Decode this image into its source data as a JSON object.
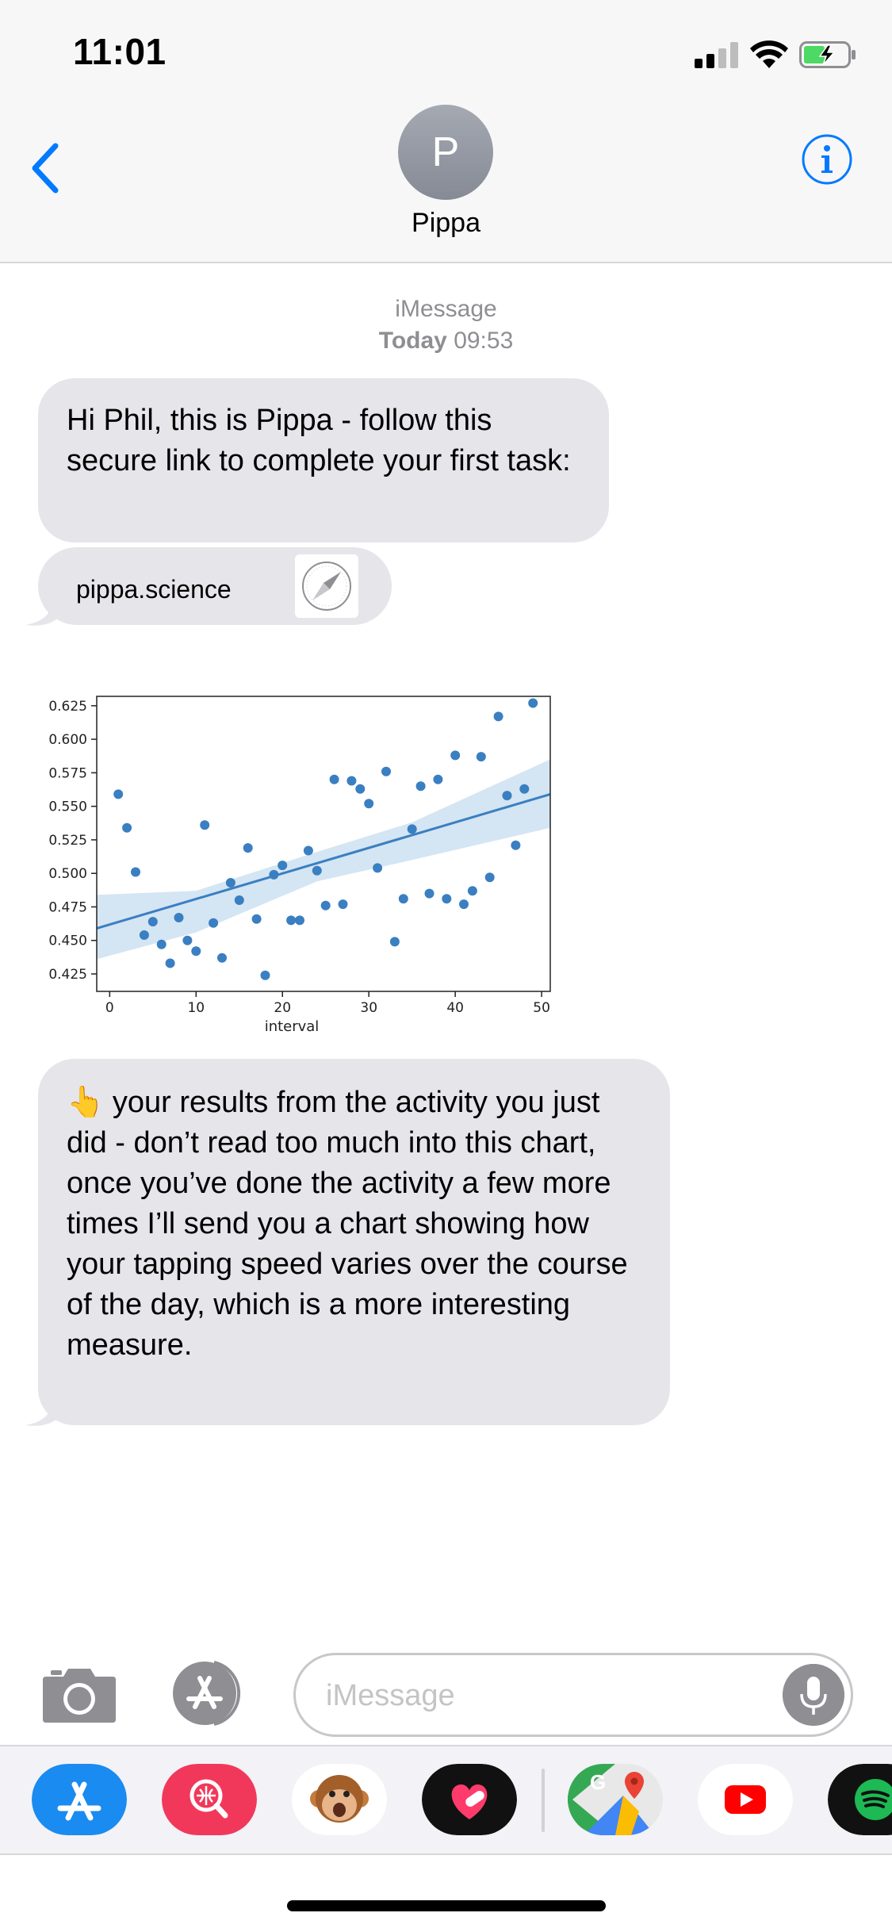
{
  "status_bar": {
    "time": "11:01"
  },
  "header": {
    "avatar_initial": "P",
    "contact_name": "Pippa"
  },
  "thread": {
    "service": "iMessage",
    "date_label": "Today",
    "time": "09:53"
  },
  "messages": {
    "first": "Hi Phil, this is Pippa - follow this secure link to complete your first task:",
    "link": "pippa.science",
    "third": "👆 your results from the activity you just did - don’t read too much into this chart, once you’ve done the activity a few more times I’ll send you a chart showing how your tapping speed varies over the course of the day, which is a more interesting measure."
  },
  "chart_data": {
    "type": "scatter",
    "xlabel": "interval",
    "ylabel": "",
    "xlim": [
      -1.5,
      51
    ],
    "ylim": [
      0.412,
      0.632
    ],
    "x_ticks": [
      0,
      10,
      20,
      30,
      40,
      50
    ],
    "x_tick_labels": [
      "0",
      "10",
      "20",
      "30",
      "40",
      "50"
    ],
    "y_ticks": [
      0.425,
      0.45,
      0.475,
      0.5,
      0.525,
      0.55,
      0.575,
      0.6,
      0.625
    ],
    "y_tick_labels": [
      "0.425",
      "0.450",
      "0.475",
      "0.500",
      "0.525",
      "0.550",
      "0.575",
      "0.600",
      "0.625"
    ],
    "color": "#3a7fc1",
    "band_color": "#c6dcef",
    "points": [
      [
        1,
        0.559
      ],
      [
        2,
        0.534
      ],
      [
        3,
        0.501
      ],
      [
        4,
        0.454
      ],
      [
        5,
        0.464
      ],
      [
        6,
        0.447
      ],
      [
        7,
        0.433
      ],
      [
        8,
        0.467
      ],
      [
        9,
        0.45
      ],
      [
        10,
        0.442
      ],
      [
        11,
        0.536
      ],
      [
        12,
        0.463
      ],
      [
        13,
        0.437
      ],
      [
        14,
        0.493
      ],
      [
        15,
        0.48
      ],
      [
        16,
        0.519
      ],
      [
        17,
        0.466
      ],
      [
        18,
        0.424
      ],
      [
        19,
        0.499
      ],
      [
        20,
        0.506
      ],
      [
        21,
        0.465
      ],
      [
        22,
        0.465
      ],
      [
        23,
        0.517
      ],
      [
        24,
        0.502
      ],
      [
        25,
        0.476
      ],
      [
        26,
        0.57
      ],
      [
        27,
        0.477
      ],
      [
        28,
        0.569
      ],
      [
        29,
        0.563
      ],
      [
        30,
        0.552
      ],
      [
        31,
        0.504
      ],
      [
        32,
        0.576
      ],
      [
        33,
        0.449
      ],
      [
        34,
        0.481
      ],
      [
        35,
        0.533
      ],
      [
        36,
        0.565
      ],
      [
        37,
        0.485
      ],
      [
        38,
        0.57
      ],
      [
        39,
        0.481
      ],
      [
        40,
        0.588
      ],
      [
        41,
        0.477
      ],
      [
        42,
        0.487
      ],
      [
        43,
        0.587
      ],
      [
        44,
        0.497
      ],
      [
        45,
        0.617
      ],
      [
        46,
        0.558
      ],
      [
        47,
        0.521
      ],
      [
        48,
        0.563
      ],
      [
        49,
        0.627
      ]
    ],
    "regression": {
      "x": [
        -1.5,
        51
      ],
      "y": [
        0.459,
        0.559
      ]
    },
    "confidence_band": {
      "x": [
        -1.5,
        10,
        24,
        35,
        51
      ],
      "upper": [
        0.484,
        0.487,
        0.516,
        0.538,
        0.585
      ],
      "lower": [
        0.436,
        0.456,
        0.494,
        0.51,
        0.534
      ]
    }
  },
  "composer": {
    "placeholder": "iMessage"
  },
  "colors": {
    "accent": "#007aff",
    "bubble": "#e5e5ea",
    "header_bg": "#f7f7f7",
    "battery_green": "#4cd964"
  }
}
